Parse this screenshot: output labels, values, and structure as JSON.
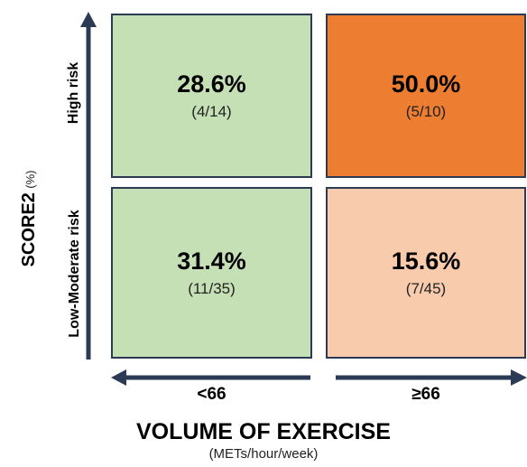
{
  "matrix": {
    "cells": {
      "high_low": {
        "percent": "28.6%",
        "fraction": "(4/14)",
        "color": "#c5e0b4"
      },
      "high_high": {
        "percent": "50.0%",
        "fraction": "(5/10)",
        "color": "#ed7d31"
      },
      "lowmod_low": {
        "percent": "31.4%",
        "fraction": "(11/35)",
        "color": "#c5e0b4"
      },
      "lowmod_high": {
        "percent": "15.6%",
        "fraction": "(7/45)",
        "color": "#f8cbad"
      }
    }
  },
  "y_axis": {
    "title": "SCORE2",
    "unit": "(%)",
    "row_labels": [
      "High risk",
      "Low-Moderate risk"
    ]
  },
  "x_axis": {
    "title": "VOLUME OF EXERCISE",
    "unit": "(METs/hour/week)",
    "column_labels": [
      "<66",
      "≥66"
    ]
  },
  "colors": {
    "axis": "#2b3a55"
  }
}
